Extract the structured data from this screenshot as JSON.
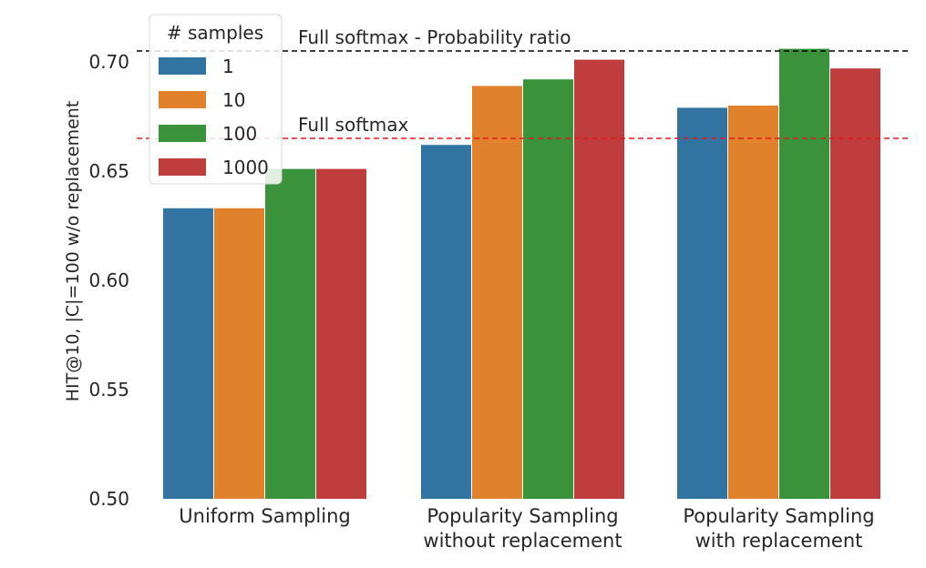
{
  "chart_data": {
    "type": "bar",
    "xlabel": "",
    "ylabel": "HIT@10, |C|=100 w/o replacement",
    "ylim": [
      0.5,
      0.72
    ],
    "yticks": [
      "0.50",
      "0.55",
      "0.60",
      "0.65",
      "0.70"
    ],
    "categories": [
      [
        "Uniform Sampling"
      ],
      [
        "Popularity Sampling",
        "without replacement"
      ],
      [
        "Popularity Sampling",
        "with replacement"
      ]
    ],
    "series": [
      {
        "name": "1",
        "color": "#3274a1",
        "values": [
          0.633,
          0.662,
          0.679
        ]
      },
      {
        "name": "10",
        "color": "#e1812c",
        "values": [
          0.633,
          0.689,
          0.68
        ]
      },
      {
        "name": "100",
        "color": "#3a923a",
        "values": [
          0.651,
          0.692,
          0.706
        ]
      },
      {
        "name": "1000",
        "color": "#c03d3e",
        "values": [
          0.651,
          0.701,
          0.697
        ]
      }
    ],
    "reference_lines": [
      {
        "label": "Full softmax - Probability ratio",
        "value": 0.705,
        "color": "#000000",
        "style": "dashed"
      },
      {
        "label": "Full softmax",
        "value": 0.665,
        "color": "#e31a1c",
        "style": "dashed"
      }
    ],
    "legend": {
      "title": "# samples",
      "placement": "top-left"
    },
    "grid": false
  }
}
